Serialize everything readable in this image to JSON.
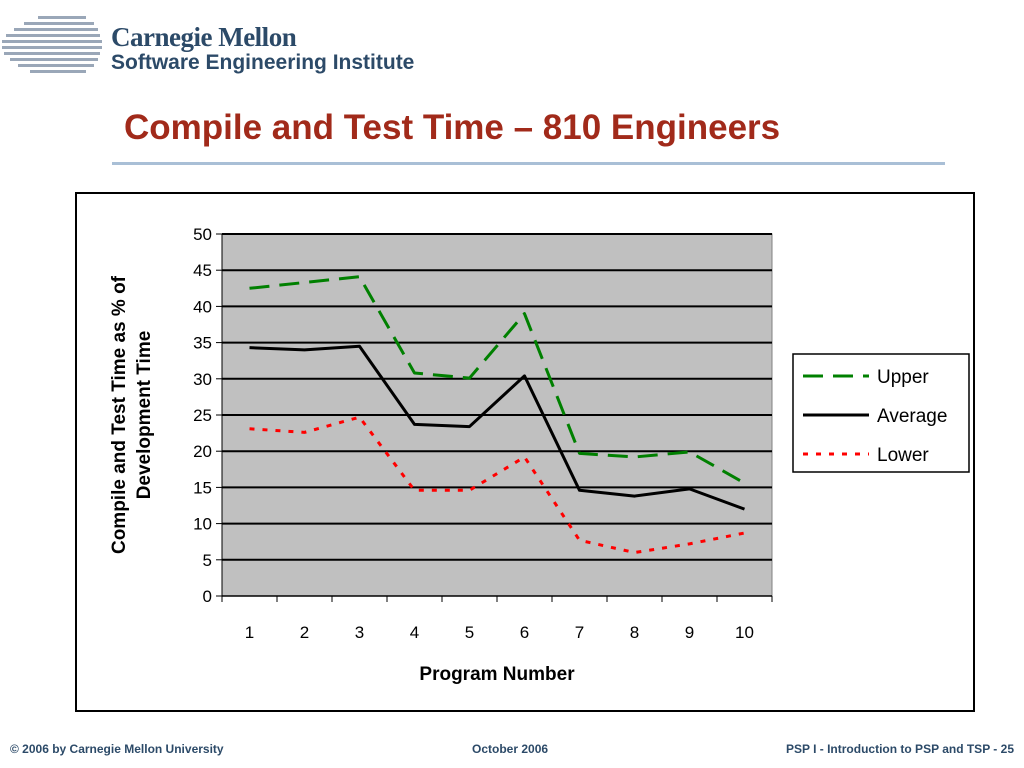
{
  "header": {
    "org_line1": "Carnegie Mellon",
    "org_line2": "Software Engineering Institute",
    "logo_icon": "sei-stripes-logo"
  },
  "slide": {
    "title": "Compile and Test Time – 810 Engineers"
  },
  "chart_data": {
    "type": "line",
    "categories": [
      "1",
      "2",
      "3",
      "4",
      "5",
      "6",
      "7",
      "8",
      "9",
      "10"
    ],
    "series": [
      {
        "name": "Upper",
        "values": [
          42.5,
          43.3,
          44.1,
          30.8,
          30.1,
          39.0,
          19.7,
          19.2,
          19.9,
          15.6
        ],
        "color": "#008000",
        "dash": "long-dash"
      },
      {
        "name": "Average",
        "values": [
          34.3,
          34.0,
          34.5,
          23.7,
          23.4,
          30.4,
          14.6,
          13.8,
          14.8,
          12.0
        ],
        "color": "#000000",
        "dash": "solid"
      },
      {
        "name": "Lower",
        "values": [
          23.1,
          22.6,
          24.7,
          14.6,
          14.6,
          19.2,
          7.7,
          6.0,
          7.2,
          8.7
        ],
        "color": "#ff0000",
        "dash": "dotted"
      }
    ],
    "xlabel": "Program Number",
    "ylabel": "Compile and Test Time as % of Development Time",
    "ylabel_lines": [
      "Compile and Test Time as % of",
      "Development Time"
    ],
    "ylim": [
      0,
      50
    ],
    "yticks": [
      "0",
      "5",
      "10",
      "15",
      "20",
      "25",
      "30",
      "35",
      "40",
      "45",
      "50"
    ],
    "grid": true,
    "plot_background": "#c0c0c0",
    "legend_position": "right"
  },
  "footer": {
    "left": "© 2006 by Carnegie Mellon University",
    "center": "October 2006",
    "right": "PSP I - Introduction to PSP and TSP - 25"
  }
}
